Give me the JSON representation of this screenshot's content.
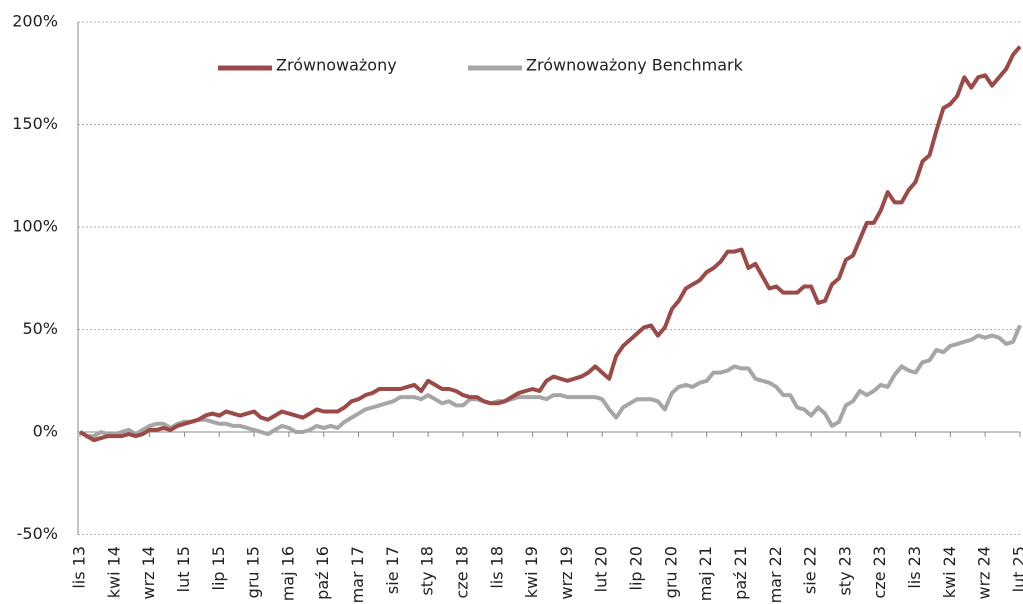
{
  "chart_data": {
    "type": "line",
    "categories": [
      "lis 13",
      null,
      null,
      null,
      null,
      "kwi 14",
      null,
      null,
      null,
      null,
      "wrz 14",
      null,
      null,
      null,
      null,
      "lut 15",
      null,
      null,
      null,
      null,
      "lip 15",
      null,
      null,
      null,
      null,
      "gru 15",
      null,
      null,
      null,
      null,
      "maj 16",
      null,
      null,
      null,
      null,
      "paź 16",
      null,
      null,
      null,
      null,
      "mar 17",
      null,
      null,
      null,
      null,
      "sie 17",
      null,
      null,
      null,
      null,
      "sty 18",
      null,
      null,
      null,
      null,
      "cze 18",
      null,
      null,
      null,
      null,
      "lis 18",
      null,
      null,
      null,
      null,
      "kwi 19",
      null,
      null,
      null,
      null,
      "wrz 19",
      null,
      null,
      null,
      null,
      "lut 20",
      null,
      null,
      null,
      null,
      "lip 20",
      null,
      null,
      null,
      null,
      "gru 20",
      null,
      null,
      null,
      null,
      "maj 21",
      null,
      null,
      null,
      null,
      "paź 21",
      null,
      null,
      null,
      null,
      "mar 22",
      null,
      null,
      null,
      null,
      "sie 22",
      null,
      null,
      null,
      null,
      "sty 23",
      null,
      null,
      null,
      null,
      "cze 23",
      null,
      null,
      null,
      null,
      "lis 23",
      null,
      null,
      null,
      null,
      "kwi 24",
      null,
      null,
      null,
      null,
      "wrz 24",
      null,
      null,
      null,
      null,
      "lut 25"
    ],
    "series": [
      {
        "name": "Zrównoważony",
        "color": "#9b4a48",
        "values": [
          0,
          -2,
          -4,
          -3,
          -2,
          -2,
          -2,
          -1,
          -2,
          -1,
          1,
          1,
          2,
          1,
          3,
          4,
          5,
          6,
          8,
          9,
          8,
          10,
          9,
          8,
          9,
          10,
          7,
          6,
          8,
          10,
          9,
          8,
          7,
          9,
          11,
          10,
          10,
          10,
          12,
          15,
          16,
          18,
          19,
          21,
          21,
          21,
          21,
          22,
          23,
          20,
          25,
          23,
          21,
          21,
          20,
          18,
          17,
          17,
          15,
          14,
          14,
          15,
          17,
          19,
          20,
          21,
          20,
          25,
          27,
          26,
          25,
          26,
          27,
          29,
          32,
          29,
          26,
          37,
          42,
          45,
          48,
          51,
          52,
          47,
          51,
          60,
          64,
          70,
          72,
          74,
          78,
          80,
          83,
          88,
          88,
          89,
          80,
          82,
          76,
          70,
          71,
          68,
          68,
          68,
          71,
          71,
          63,
          64,
          72,
          75,
          84,
          86,
          94,
          102,
          102,
          108,
          117,
          112,
          112,
          118,
          122,
          132,
          135,
          147,
          158,
          160,
          164,
          173,
          168,
          173,
          174,
          169,
          173,
          177,
          184,
          188
        ]
      },
      {
        "name": "Zrównoważony Benchmark",
        "color": "#a6a6a6",
        "values": [
          0,
          -2,
          -2,
          0,
          -1,
          -1,
          0,
          1,
          -1,
          1,
          3,
          4,
          4,
          2,
          4,
          5,
          5,
          6,
          6,
          5,
          4,
          4,
          3,
          3,
          2,
          1,
          0,
          -1,
          1,
          3,
          2,
          0,
          0,
          1,
          3,
          2,
          3,
          2,
          5,
          7,
          9,
          11,
          12,
          13,
          14,
          15,
          17,
          17,
          17,
          16,
          18,
          16,
          14,
          15,
          13,
          13,
          16,
          16,
          15,
          14,
          15,
          15,
          16,
          17,
          17,
          17,
          17,
          16,
          18,
          18,
          17,
          17,
          17,
          17,
          17,
          16,
          11,
          7,
          12,
          14,
          16,
          16,
          16,
          15,
          11,
          19,
          22,
          23,
          22,
          24,
          25,
          29,
          29,
          30,
          32,
          31,
          31,
          26,
          25,
          24,
          22,
          18,
          18,
          12,
          11,
          8,
          12,
          9,
          3,
          5,
          13,
          15,
          20,
          18,
          20,
          23,
          22,
          28,
          32,
          30,
          29,
          34,
          35,
          40,
          39,
          42,
          43,
          44,
          45,
          47,
          46,
          47,
          46,
          43,
          44,
          52
        ]
      }
    ],
    "ylim": [
      -50,
      200
    ],
    "yticks": [
      {
        "value": -50,
        "label": "-50%"
      },
      {
        "value": 0,
        "label": "0%"
      },
      {
        "value": 50,
        "label": "50%"
      },
      {
        "value": 100,
        "label": "100%"
      },
      {
        "value": 150,
        "label": "150%"
      },
      {
        "value": 200,
        "label": "200%"
      }
    ],
    "grid": true,
    "legend": "top"
  }
}
